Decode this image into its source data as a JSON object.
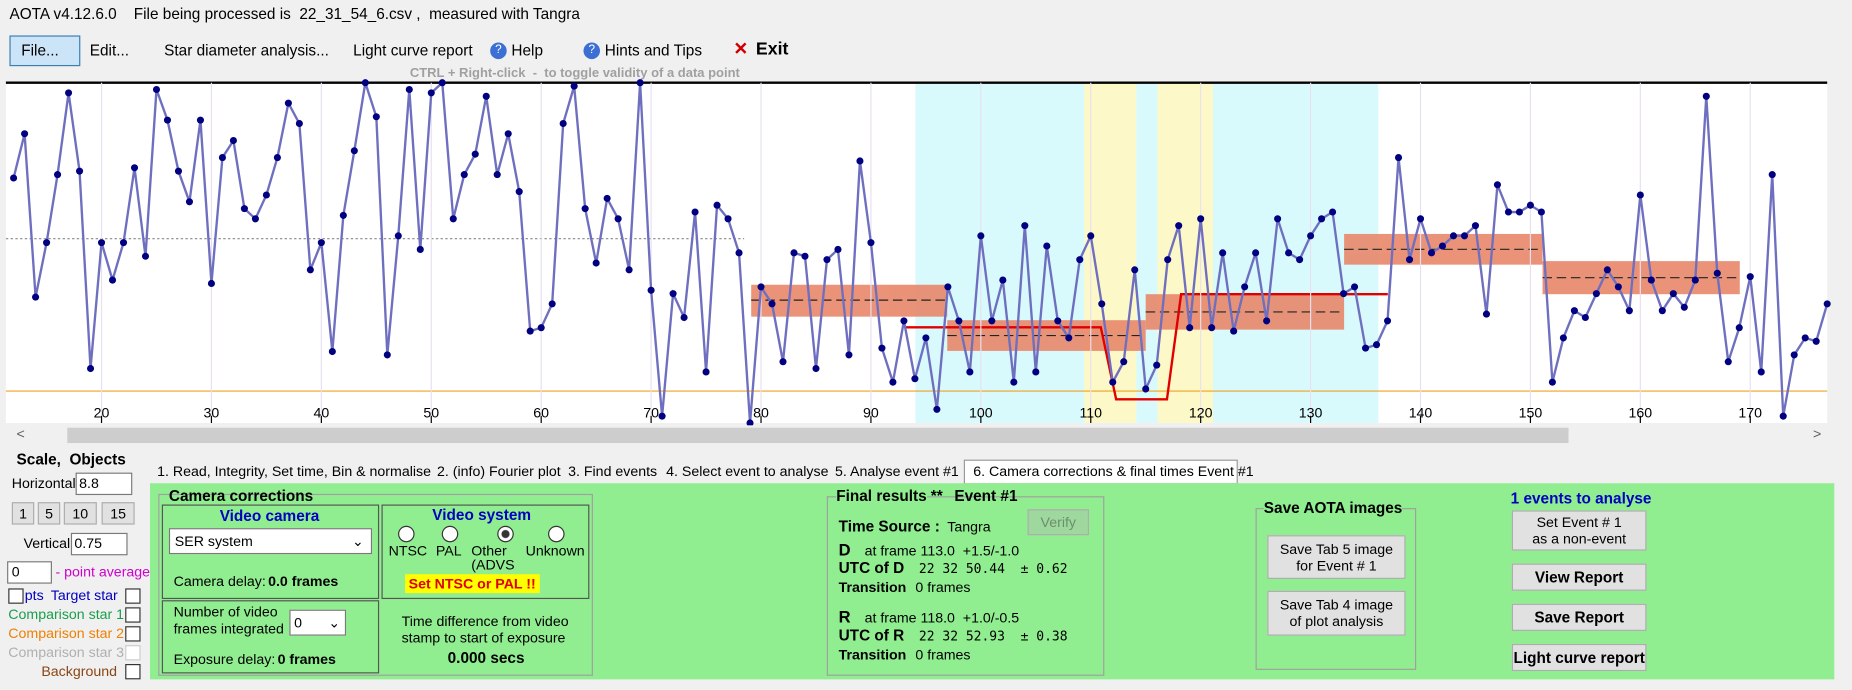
{
  "window": {
    "title": "AOTA v4.12.6.0    File being processed is  22_31_54_6.csv ,  measured with Tangra"
  },
  "menu": {
    "items": [
      "File...",
      "Edit...",
      "Star diameter analysis...",
      "Light curve report",
      "Help",
      "Hints and Tips",
      "Exit"
    ],
    "hint": "CTRL + Right-click  -  to toggle validity of a data point"
  },
  "plot": {
    "type": "line",
    "color": "#6f6fc0",
    "x": [
      12,
      13,
      14,
      15,
      16,
      17,
      18,
      19,
      20,
      21,
      22,
      23,
      24,
      25,
      26,
      27,
      28,
      29,
      30,
      31,
      32,
      33,
      34,
      35,
      36,
      37,
      38,
      39,
      40,
      41,
      42,
      43,
      44,
      45,
      46,
      47,
      48,
      49,
      50,
      51,
      52,
      53,
      54,
      55,
      56,
      57,
      58,
      59,
      60,
      61,
      62,
      63,
      64,
      65,
      66,
      67,
      68,
      69,
      70,
      71,
      72,
      73,
      74,
      75,
      76,
      77,
      78,
      79,
      80,
      81,
      82,
      83,
      84,
      85,
      86,
      87,
      88,
      89,
      90,
      91,
      92,
      93,
      94,
      95,
      96,
      97,
      98,
      99,
      100,
      101,
      102,
      103,
      104,
      105,
      106,
      107,
      108,
      109,
      110,
      111,
      112,
      113,
      114,
      115,
      116,
      117,
      118,
      119,
      120,
      121,
      122,
      123,
      124,
      125,
      126,
      127,
      128,
      129,
      130,
      131,
      132,
      133,
      134,
      135,
      136,
      137,
      138,
      139,
      140,
      141,
      142,
      143,
      144,
      145,
      146,
      147,
      148,
      149,
      150,
      151,
      152,
      153,
      154,
      155,
      156,
      157,
      158,
      159,
      160,
      161,
      162,
      163,
      164,
      165,
      166,
      167,
      168,
      169,
      170,
      171,
      172,
      173,
      174,
      175,
      176,
      177
    ],
    "values": [
      72,
      85,
      37,
      53,
      73,
      97,
      74,
      16,
      53,
      42,
      53,
      75,
      49,
      98,
      89,
      74,
      65,
      89,
      41,
      78,
      83,
      63,
      60,
      67,
      78,
      94,
      88,
      45,
      53,
      21,
      61,
      80,
      100,
      90,
      20,
      55,
      98,
      51,
      97,
      100,
      60,
      73,
      79,
      96,
      73,
      85,
      68,
      27,
      28,
      35,
      88,
      99,
      63,
      47,
      66,
      60,
      45,
      100,
      39,
      2,
      38,
      31,
      62,
      15,
      64,
      60,
      50,
      0,
      40,
      35,
      18,
      50,
      49,
      16,
      48,
      51,
      20,
      77,
      53,
      22,
      12,
      30,
      13,
      25,
      4,
      40,
      30,
      15,
      55,
      30,
      42,
      12,
      58,
      15,
      52,
      30,
      25,
      48,
      55,
      35,
      12,
      18,
      45,
      10,
      17,
      48,
      58,
      28,
      60,
      28,
      50,
      27,
      40,
      50,
      30,
      60,
      50,
      48,
      55,
      60,
      62,
      38,
      40,
      22,
      23,
      30,
      78,
      48,
      60,
      50,
      52,
      55,
      55,
      58,
      32,
      70,
      62,
      62,
      64,
      62,
      12,
      25,
      33,
      31,
      38,
      45,
      40,
      33,
      67,
      42,
      33,
      38,
      34,
      42,
      96,
      44,
      18,
      28,
      43,
      15,
      73,
      2,
      20,
      25,
      24,
      35
    ],
    "xlim": [
      11.3,
      177
    ],
    "ylim": [
      0,
      100
    ],
    "xticks": [
      20,
      30,
      40,
      50,
      60,
      70,
      80,
      90,
      100,
      110,
      120,
      130,
      140,
      150,
      160,
      170
    ]
  },
  "left_panel": {
    "title": "Scale,  Objects",
    "horizontal_label": "Horizontal",
    "horizontal_value": "8.8",
    "scale_buttons": [
      "1",
      "5",
      "10",
      "15"
    ],
    "vertical_label": "Vertical",
    "vertical_value": "0.75",
    "point_average_value": "0",
    "point_average_label": "- point average",
    "pts_label": "pts",
    "objects": [
      "Target star",
      "Comparison star 1",
      "Comparison star 2",
      "Comparison star 3",
      "Background"
    ]
  },
  "tabs": [
    "1. Read, Integrity, Set time, Bin & normalise",
    "2. (info) Fourier plot",
    "3. Find events",
    "4. Select event to analyse",
    "5. Analyse event #1",
    "6. Camera corrections & final times Event #1"
  ],
  "camera": {
    "title": "Camera corrections",
    "video_camera": "Video camera",
    "camera_select": "SER system",
    "camera_delay_label": "Camera delay:",
    "camera_delay": "0.0 frames",
    "video_system": "Video system",
    "systems": [
      "NTSC",
      "PAL",
      "Other",
      "Unknown"
    ],
    "other_note": "(ADVS",
    "warning": "Set NTSC or PAL !!",
    "frames_label": [
      "Number of video",
      "frames integrated"
    ],
    "frames_value": "0",
    "exposure_delay_label": "Exposure delay:",
    "exposure_delay": "0 frames",
    "time_diff": [
      "Time difference from video",
      "stamp to start of exposure"
    ],
    "time_diff_value": "0.000 secs"
  },
  "final_results": {
    "title": "Final results",
    "stars": "**",
    "event": "Event #1",
    "time_source_label": "Time Source :",
    "time_source": "Tangra",
    "verify": "Verify",
    "d": {
      "label": "D",
      "frame": "at frame 113.0  +1.5/-1.0",
      "utc_label": "UTC of D",
      "utc": "22 32 50.44  ± 0.62",
      "transition_label": "Transition",
      "transition": "0 frames"
    },
    "r": {
      "label": "R",
      "frame": "at frame 118.0  +1.0/-0.5",
      "utc_label": "UTC of R",
      "utc": "22 32 52.93  ± 0.38",
      "transition_label": "Transition",
      "transition": "0 frames"
    }
  },
  "save_images": {
    "title": "Save AOTA images",
    "buttons": [
      [
        "Save Tab 5 image",
        "for Event # 1"
      ],
      [
        "Save Tab 4 image",
        "of plot analysis"
      ]
    ]
  },
  "events": {
    "title": "1 events to analyse",
    "non_event": [
      "Set Event # 1",
      "as a non-event"
    ],
    "view": "View Report",
    "save": "Save Report",
    "light_curve": "Light curve report"
  }
}
